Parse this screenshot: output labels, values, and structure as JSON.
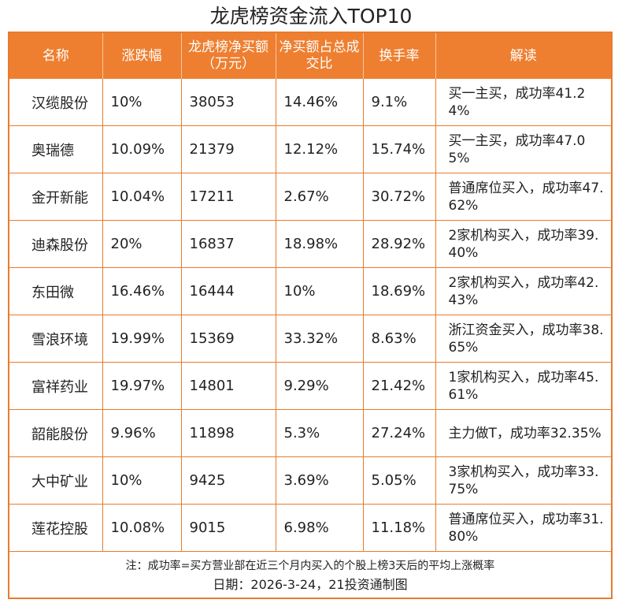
{
  "title": "龙虎榜资金流入TOP10",
  "table": {
    "headers": [
      "名称",
      "涨跌幅",
      "龙虎榜净买额（万元）",
      "净买额占总成交比",
      "换手率",
      "解读"
    ],
    "rows": [
      [
        "汉缆股份",
        "10%",
        "38053",
        "14.46%",
        "9.1%",
        "买一主买，成功率41.24%"
      ],
      [
        "奥瑞德",
        "10.09%",
        "21379",
        "12.12%",
        "15.74%",
        "买一主买，成功率47.05%"
      ],
      [
        "金开新能",
        "10.04%",
        "17211",
        "2.67%",
        "30.72%",
        "普通席位买入，成功率47.62%"
      ],
      [
        "迪森股份",
        "20%",
        "16837",
        "18.98%",
        "28.92%",
        "2家机构买入，成功率39.40%"
      ],
      [
        "东田微",
        "16.46%",
        "16444",
        "10%",
        "18.69%",
        "2家机构买入，成功率42.43%"
      ],
      [
        "雪浪环境",
        "19.99%",
        "15369",
        "33.32%",
        "8.63%",
        "浙江资金买入，成功率38.65%"
      ],
      [
        "富祥药业",
        "19.97%",
        "14801",
        "9.29%",
        "21.42%",
        "1家机构买入，成功率45.61%"
      ],
      [
        "韶能股份",
        "9.96%",
        "11898",
        "5.3%",
        "27.24%",
        "主力做T，成功率32.35%"
      ],
      [
        "大中矿业",
        "10%",
        "9425",
        "3.69%",
        "5.05%",
        "3家机构买入，成功率33.75%"
      ],
      [
        "莲花控股",
        "10.08%",
        "9015",
        "6.98%",
        "11.18%",
        "普通席位买入，成功率31.80%"
      ]
    ]
  },
  "footer": {
    "note": "注：成功率=买方营业部在近三个月内买入的个股上榜3天后的平均上涨概率",
    "date": "日期：2026-3-24，21投资通制图"
  },
  "colors": {
    "header_bg": "#ee7f30",
    "border": "#e87b2e"
  }
}
